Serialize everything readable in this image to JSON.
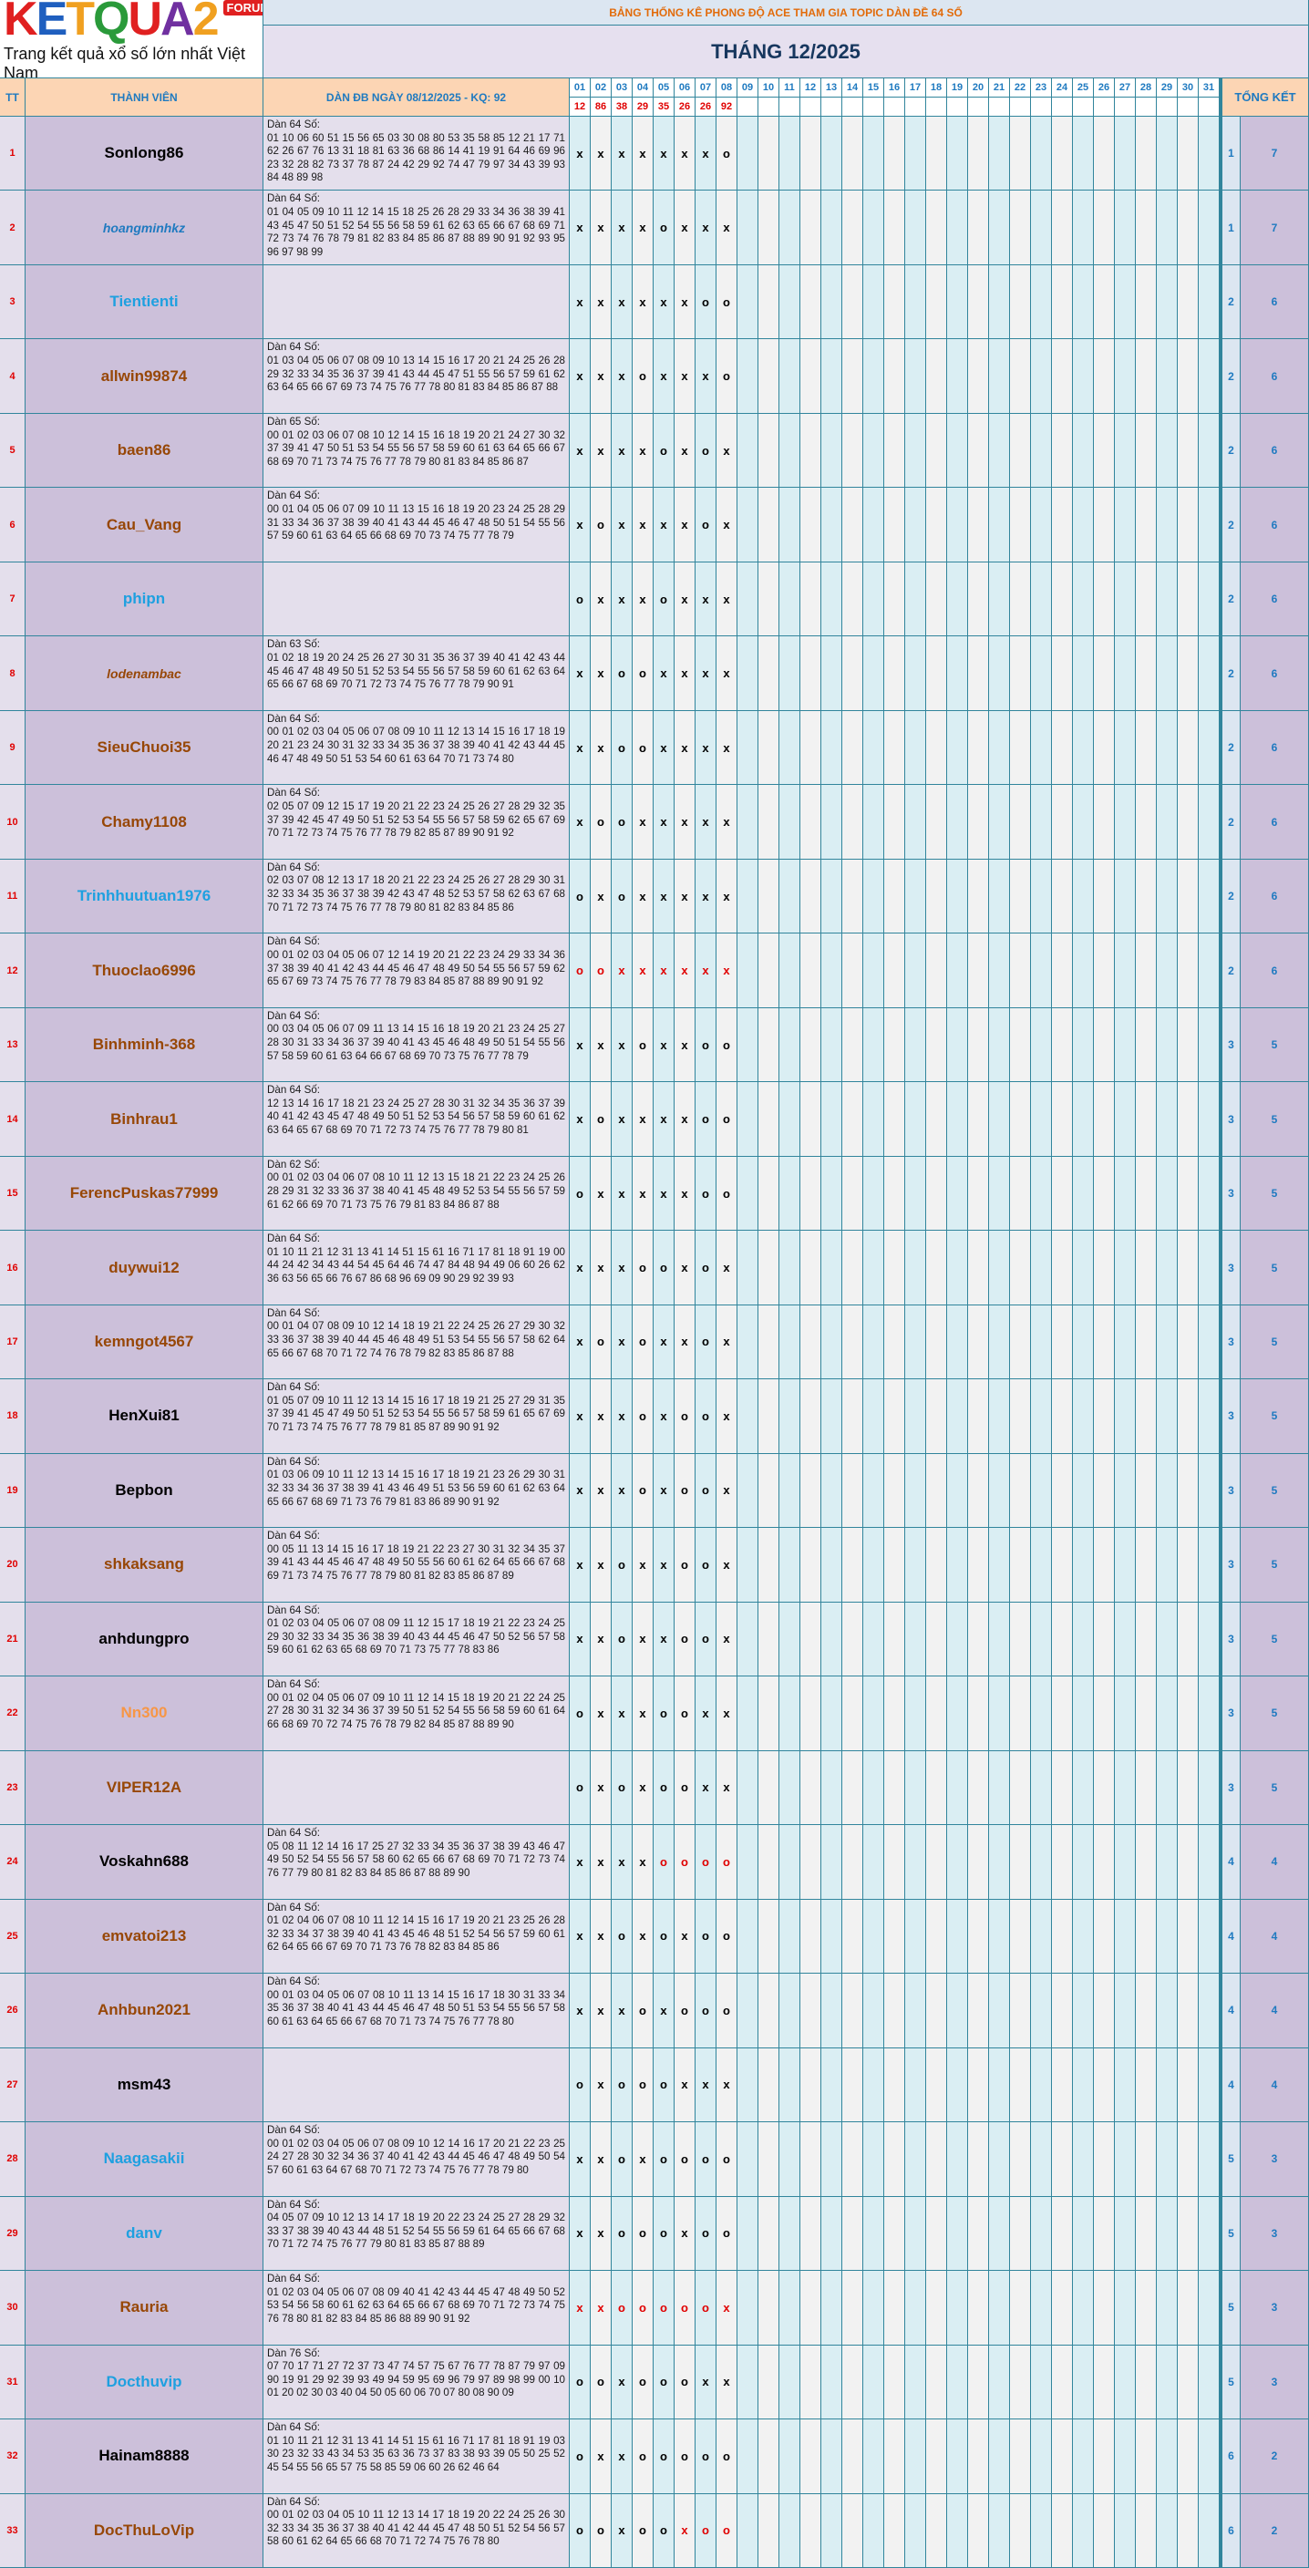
{
  "logo": {
    "text": "KETQUA2",
    "badge": "FORUM",
    "tagline": "Trang kết quả xổ số lớn nhất Việt Nam"
  },
  "header": {
    "title": "BẢNG THỐNG KÊ PHONG ĐỘ ACE THAM GIA TOPIC DÀN ĐỀ 64 SỐ",
    "month": "THÁNG 12/2025",
    "col_tt": "TT",
    "col_name": "THÀNH VIÊN",
    "col_dan": "DÀN ĐB NGÀY 08/12/2025 - KQ: 92",
    "col_total": "TỔNG KẾT"
  },
  "days": [
    "01",
    "02",
    "03",
    "04",
    "05",
    "06",
    "07",
    "08",
    "09",
    "10",
    "11",
    "12",
    "13",
    "14",
    "15",
    "16",
    "17",
    "18",
    "19",
    "20",
    "21",
    "22",
    "23",
    "24",
    "25",
    "26",
    "27",
    "28",
    "29",
    "30",
    "31"
  ],
  "results": [
    "12",
    "86",
    "38",
    "29",
    "35",
    "26",
    "26",
    "92"
  ],
  "rows": [
    {
      "tt": 1,
      "name": "Sonlong86",
      "name_color": "#000000",
      "dan_title": "Dàn 64 Số:",
      "dan": "01 10 06 60 51 15 56 65 03 30 08 80 53 35 58 85 12 21 17 71 62 26 67 76 13 31 18 81 63 36 68 86 14 41 19 91 64 46 69 96 23 32 28 82 73 37 78 87 24 42 29 92 74 47 79 97 34 43 39 93 84 48 89 98",
      "marks": [
        "x",
        "x",
        "x",
        "x",
        "x",
        "x",
        "x",
        "o"
      ],
      "o": 1,
      "x": 7
    },
    {
      "tt": 2,
      "name": "hoangminhkz",
      "name_color": "#1f7ac0",
      "name_style": "italic",
      "dan_title": "Dàn 64 Số:",
      "dan": "01 04 05 09 10 11 12 14 15 18 25 26 28 29 33 34 36 38 39 41 43 45 47 50 51 52 54 55 56 58 59 61 62 63 65 66 67 68 69 71 72 73 74 76 78 79 81 82 83 84 85 86 87 88 89 90 91 92 93 95 96 97 98 99",
      "marks": [
        "x",
        "x",
        "x",
        "x",
        "o",
        "x",
        "x",
        "x"
      ],
      "o": 1,
      "x": 7
    },
    {
      "tt": 3,
      "name": "Tientienti",
      "name_color": "#1ea0e0",
      "marks": [
        "x",
        "x",
        "x",
        "x",
        "x",
        "x",
        "o",
        "o"
      ],
      "o": 2,
      "x": 6
    },
    {
      "tt": 4,
      "name": "allwin99874",
      "name_color": "#974706",
      "dan_title": "Dàn 64 Số:",
      "dan": "01 03 04 05 06 07 08 09 10 13 14 15 16 17 20 21 24 25 26 28 29 32 33 34 35 36 37 39 41 43 44 45 47 51 55 56 57 59 61 62 63 64 65 66 67 69 73 74 75 76 77 78 80 81 83 84 85 86 87 88",
      "marks": [
        "x",
        "x",
        "x",
        "o",
        "x",
        "x",
        "x",
        "o"
      ],
      "o": 2,
      "x": 6
    },
    {
      "tt": 5,
      "name": "baen86",
      "name_color": "#974706",
      "dan_title": "Dàn 65 Số:",
      "dan": "00 01 02 03 06 07 08 10 12 14 15 16 18 19 20 21 24 27 30 32 37 39 41 47 50 51 53 54 55 56 57 58 59 60 61 63 64 65 66 67 68 69 70 71 73 74 75 76 77 78 79 80 81 83 84 85 86 87",
      "marks": [
        "x",
        "x",
        "x",
        "x",
        "o",
        "x",
        "o",
        "x"
      ],
      "o": 2,
      "x": 6
    },
    {
      "tt": 6,
      "name": "Cau_Vang",
      "name_color": "#974706",
      "dan_title": "Dàn 64 Số:",
      "dan": "00 01 04 05 06 07 09 10 11 13 15 16 18 19 20 23 24 25 28 29 31 33 34 36 37 38 39 40 41 43 44 45 46 47 48 50 51 54 55 56 57 59 60 61 63 64 65 66 68 69 70 73 74 75 77 78 79",
      "marks": [
        "x",
        "o",
        "x",
        "x",
        "x",
        "x",
        "o",
        "x"
      ],
      "o": 2,
      "x": 6
    },
    {
      "tt": 7,
      "name": "phipn",
      "name_color": "#1ea0e0",
      "marks": [
        "o",
        "x",
        "x",
        "x",
        "o",
        "x",
        "x",
        "x"
      ],
      "o": 2,
      "x": 6
    },
    {
      "tt": 8,
      "name": "lodenambac",
      "name_color": "#974706",
      "name_style": "italic",
      "dan_title": "Dàn 63 Số:",
      "dan": "01 02 18 19 20 24 25 26 27 30 31 35 36 37 39 40 41 42 43 44 45 46 47 48 49 50 51 52 53 54 55 56 57 58 59 60 61 62 63 64 65 66 67 68 69 70 71 72 73 74 75 76 77 78 79 90 91",
      "marks": [
        "x",
        "x",
        "o",
        "o",
        "x",
        "x",
        "x",
        "x"
      ],
      "o": 2,
      "x": 6
    },
    {
      "tt": 9,
      "name": "SieuChuoi35",
      "name_color": "#974706",
      "dan_title": "Dàn 64 Số:",
      "dan": "00 01 02 03 04 05 06 07 08 09 10 11 12 13 14 15 16 17 18 19 20 21 23 24 30 31 32 33 34 35 36 37 38 39 40 41 42 43 44 45 46 47 48 49 50 51 53 54 60 61 63 64 70 71 73 74 80",
      "marks": [
        "x",
        "x",
        "o",
        "o",
        "x",
        "x",
        "x",
        "x"
      ],
      "o": 2,
      "x": 6
    },
    {
      "tt": 10,
      "name": "Chamy1108",
      "name_color": "#974706",
      "dan_title": "Dàn 64 Số:",
      "dan": "02 05 07 09 12 15 17 19 20 21 22 23 24 25 26 27 28 29 32 35 37 39 42 45 47 49 50 51 52 53 54 55 56 57 58 59 62 65 67 69 70 71 72 73 74 75 76 77 78 79 82 85 87 89 90 91 92",
      "marks": [
        "x",
        "o",
        "o",
        "x",
        "x",
        "x",
        "x",
        "x"
      ],
      "o": 2,
      "x": 6
    },
    {
      "tt": 11,
      "name": "Trinhhuutuan1976",
      "name_color": "#1ea0e0",
      "dan_title": "Dàn 64 Số:",
      "dan": "02 03 07 08 12 13 17 18 20 21 22 23 24 25 26 27 28 29 30 31 32 33 34 35 36 37 38 39 42 43 47 48 52 53 57 58 62 63 67 68 70 71 72 73 74 75 76 77 78 79 80 81 82 83 84 85 86",
      "marks": [
        "o",
        "x",
        "o",
        "x",
        "x",
        "x",
        "x",
        "x"
      ],
      "o": 2,
      "x": 6
    },
    {
      "tt": 12,
      "name": "Thuoclao6996",
      "name_color": "#974706",
      "dan_title": "Dàn 64 Số:",
      "dan": "00 01 02 03 04 05 06 07 12 14 19 20 21 22 23 24 29 33 34 36 37 38 39 40 41 42 43 44 45 46 47 48 49 50 54 55 56 57 59 62 65 67 69 73 74 75 76 77 78 79 83 84 85 87 88 89 90 91 92",
      "marks": [
        "o",
        "o",
        "x",
        "x",
        "x",
        "x",
        "x",
        "x"
      ],
      "mark_colors": [
        "#e00000",
        "#e00000",
        "#e00000",
        "#e00000",
        "#e00000",
        "#e00000",
        "#e00000",
        "#e00000"
      ],
      "o": 2,
      "x": 6
    },
    {
      "tt": 13,
      "name": "Binhminh-368",
      "name_color": "#974706",
      "dan_title": "Dàn 64 Số:",
      "dan": "00 03 04 05 06 07 09 11 13 14 15 16 18 19 20 21 23 24 25 27 28 30 31 33 34 36 37 39 40 41 43 45 46 48 49 50 51 54 55 56 57 58 59 60 61 63 64 66 67 68 69 70 73 75 76 77 78 79",
      "marks": [
        "x",
        "x",
        "x",
        "o",
        "x",
        "x",
        "o",
        "o"
      ],
      "o": 3,
      "x": 5
    },
    {
      "tt": 14,
      "name": "Binhrau1",
      "name_color": "#974706",
      "dan_title": "Dàn 64 Số:",
      "dan": "12 13 14 16 17 18 21 23 24 25 27 28 30 31 32 34 35 36 37 39 40 41 42 43 45 47 48 49 50 51 52 53 54 56 57 58 59 60 61 62 63 64 65 67 68 69 70 71 72 73 74 75 76 77 78 79 80 81",
      "marks": [
        "x",
        "o",
        "x",
        "x",
        "x",
        "x",
        "o",
        "o"
      ],
      "o": 3,
      "x": 5
    },
    {
      "tt": 15,
      "name": "FerencPuskas77999",
      "name_color": "#974706",
      "dan_title": "Dàn 62 Số:",
      "dan": "00 01 02 03 04 06 07 08 10 11 12 13 15 18 21 22 23 24 25 26 28 29 31 32 33 36 37 38 40 41 45 48 49 52 53 54 55 56 57 59 61 62 66 69 70 71 73 75 76 79 81 83 84 86 87 88",
      "marks": [
        "o",
        "x",
        "x",
        "x",
        "x",
        "x",
        "o",
        "o"
      ],
      "o": 3,
      "x": 5
    },
    {
      "tt": 16,
      "name": "duywui12",
      "name_color": "#974706",
      "dan_title": "Dàn 64 Số:",
      "dan": "01 10 11 21 12 31 13 41 14 51 15 61 16 71 17 81 18 91 19 00 44 24 42 34 43 44 54 45 64 46 74 47 84 48 94 49 06 60 26 62 36 63 56 65 66 76 67 86 68 96 69 09 90 29 92 39 93",
      "marks": [
        "x",
        "x",
        "x",
        "o",
        "o",
        "x",
        "o",
        "x"
      ],
      "o": 3,
      "x": 5
    },
    {
      "tt": 17,
      "name": "kemngot4567",
      "name_color": "#974706",
      "dan_title": "Dàn 64 Số:",
      "dan": "00 01 04 07 08 09 10 12 14 18 19 21 22 24 25 26 27 29 30 32 33 36 37 38 39 40 44 45 46 48 49 51 53 54 55 56 57 58 62 64 65 66 67 68 70 71 72 74 76 78 79 82 83 85 86 87 88",
      "marks": [
        "x",
        "o",
        "x",
        "o",
        "x",
        "x",
        "o",
        "x"
      ],
      "o": 3,
      "x": 5
    },
    {
      "tt": 18,
      "name": "HenXui81",
      "name_color": "#000000",
      "dan_title": "Dàn 64 Số:",
      "dan": "01 05 07 09 10 11 12 13 14 15 16 17 18 19 21 25 27 29 31 35 37 39 41 45 47 49 50 51 52 53 54 55 56 57 58 59 61 65 67 69 70 71 73 74 75 76 77 78 79 81 85 87 89 90 91 92",
      "marks": [
        "x",
        "x",
        "x",
        "o",
        "x",
        "o",
        "o",
        "x"
      ],
      "o": 3,
      "x": 5
    },
    {
      "tt": 19,
      "name": "Bepbon",
      "name_color": "#000000",
      "dan_title": "Dàn 64 Số:",
      "dan": "01 03 06 09 10 11 12 13 14 15 16 17 18 19 21 23 26 29 30 31 32 33 34 36 37 38 39 41 43 46 49 51 53 56 59 60 61 62 63 64 65 66 67 68 69 71 73 76 79 81 83 86 89 90 91 92",
      "marks": [
        "x",
        "x",
        "x",
        "o",
        "x",
        "o",
        "o",
        "x"
      ],
      "o": 3,
      "x": 5
    },
    {
      "tt": 20,
      "name": "shkaksang",
      "name_color": "#974706",
      "dan_title": "Dàn 64 Số:",
      "dan": "00 05 11 13 14 15 16 17 18 19 21 22 23 27 30 31 32 34 35 37 39 41 43 44 45 46 47 48 49 50 55 56 60 61 62 64 65 66 67 68 69 71 73 74 75 76 77 78 79 80 81 82 83 85 86 87 89",
      "marks": [
        "x",
        "x",
        "o",
        "x",
        "x",
        "o",
        "o",
        "x"
      ],
      "o": 3,
      "x": 5
    },
    {
      "tt": 21,
      "name": "anhdungpro",
      "name_color": "#000000",
      "dan_title": "Dàn 64 Số:",
      "dan": "01 02 03 04 05 06 07 08 09 11 12 15 17 18 19 21 22 23 24 25 29 30 32 33 34 35 36 38 39 40 43 44 45 46 47 50 52 56 57 58 59 60 61 62 63 65 68 69 70 71 73 75 77 78 83 86",
      "marks": [
        "x",
        "x",
        "o",
        "x",
        "x",
        "o",
        "o",
        "x"
      ],
      "o": 3,
      "x": 5
    },
    {
      "tt": 22,
      "name": "Nn300",
      "name_color": "#f79646",
      "dan_title": "Dàn 64 Số:",
      "dan": "00 01 02 04 05 06 07 09 10 11 12 14 15 18 19 20 21 22 24 25 27 28 30 31 32 34 36 37 39 50 51 52 54 55 56 58 59 60 61 64 66 68 69 70 72 74 75 76 78 79 82 84 85 87 88 89 90",
      "marks": [
        "o",
        "x",
        "x",
        "x",
        "o",
        "o",
        "x",
        "x"
      ],
      "o": 3,
      "x": 5
    },
    {
      "tt": 23,
      "name": "VIPER12A",
      "name_color": "#974706",
      "marks": [
        "o",
        "x",
        "o",
        "x",
        "o",
        "o",
        "x",
        "x"
      ],
      "o": 3,
      "x": 5
    },
    {
      "tt": 24,
      "name": "Voskahn688",
      "name_color": "#000000",
      "dan_title": "Dàn 64 Số:",
      "dan": "05 08 11 12 14 16 17 25 27 32 33 34 35 36 37 38 39 43 46 47 49 50 52 54 55 56 57 58 60 62 65 66 67 68 69 70 71 72 73 74 76 77 79 80 81 82 83 84 85 86 87 88 89 90",
      "marks": [
        "x",
        "x",
        "x",
        "x",
        "o",
        "o",
        "o",
        "o"
      ],
      "mark_colors": [
        "#000000",
        "#000000",
        "#000000",
        "#000000",
        "#e00000",
        "#e00000",
        "#e00000",
        "#e00000"
      ],
      "o": 4,
      "x": 4
    },
    {
      "tt": 25,
      "name": "emvatoi213",
      "name_color": "#974706",
      "dan_title": "Dàn 64 Số:",
      "dan": "01 02 04 06 07 08 10 11 12 14 15 16 17 19 20 21 23 25 26 28 32 33 34 37 38 39 40 41 43 45 46 48 51 52 54 56 57 59 60 61 62 64 65 66 67 69 70 71 73 76 78 82 83 84 85 86",
      "marks": [
        "x",
        "x",
        "o",
        "x",
        "o",
        "x",
        "o",
        "o"
      ],
      "o": 4,
      "x": 4
    },
    {
      "tt": 26,
      "name": "Anhbun2021",
      "name_color": "#974706",
      "dan_title": "Dàn 64 Số:",
      "dan": "00 01 03 04 05 06 07 08 10 11 13 14 15 16 17 18 30 31 33 34 35 36 37 38 40 41 43 44 45 46 47 48 50 51 53 54 55 56 57 58 60 61 63 64 65 66 67 68 70 71 73 74 75 76 77 78 80",
      "marks": [
        "x",
        "x",
        "x",
        "o",
        "x",
        "o",
        "o",
        "o"
      ],
      "o": 4,
      "x": 4
    },
    {
      "tt": 27,
      "name": "msm43",
      "name_color": "#000000",
      "marks": [
        "o",
        "x",
        "o",
        "o",
        "o",
        "x",
        "x",
        "x"
      ],
      "o": 4,
      "x": 4
    },
    {
      "tt": 28,
      "name": "Naagasakii",
      "name_color": "#1ea0e0",
      "dan_title": "Dàn 64 Số:",
      "dan": "00 01 02 03 04 05 06 07 08 09 10 12 14 16 17 20 21 22 23 25 24 27 28 30 32 34 36 37 40 41 42 43 44 45 46 47 48 49 50 54 57 60 61 63 64 67 68 70 71 72 73 74 75 76 77 78 79 80",
      "marks": [
        "x",
        "x",
        "o",
        "x",
        "o",
        "o",
        "o",
        "o"
      ],
      "o": 5,
      "x": 3
    },
    {
      "tt": 29,
      "name": "danv",
      "name_color": "#1ea0e0",
      "dan_title": "Dàn 64 Số:",
      "dan": "04 05 07 09 10 12 13 14 17 18 19 20 22 23 24 25 27 28 29 32 33 37 38 39 40 43 44 48 51 52 54 55 56 59 61 64 65 66 67 68 70 71 72 74 75 76 77 79 80 81 83 85 87 88 89",
      "marks": [
        "x",
        "x",
        "o",
        "o",
        "o",
        "x",
        "o",
        "o"
      ],
      "o": 5,
      "x": 3
    },
    {
      "tt": 30,
      "name": "Rauria",
      "name_color": "#974706",
      "dan_title": "Dàn 64 Số:",
      "dan": "01 02 03 04 05 06 07 08 09 40 41 42 43 44 45 47 48 49 50 52 53 54 56 58 60 61 62 63 64 65 66 67 68 69 70 71 72 73 74 75 76 78 80 81 82 83 84 85 86 88 89 90 91 92",
      "marks": [
        "x",
        "x",
        "o",
        "o",
        "o",
        "o",
        "o",
        "x"
      ],
      "mark_colors": [
        "#e00000",
        "#e00000",
        "#e00000",
        "#e00000",
        "#e00000",
        "#e00000",
        "#e00000",
        "#e00000"
      ],
      "o": 5,
      "x": 3
    },
    {
      "tt": 31,
      "name": "Docthuvip",
      "name_color": "#1ea0e0",
      "dan_title": "Dàn 76 Số:",
      "dan": "07 70 17 71 27 72 37 73 47 74 57 75 67 76 77 78 87 79 97 09 90 19 91 29 92 39 93 49 94 59 95 69 96 79 97 89 98 99 00 10 01 20 02 30 03 40 04 50 05 60 06 70 07 80 08 90 09",
      "marks": [
        "o",
        "o",
        "x",
        "o",
        "o",
        "o",
        "x",
        "x"
      ],
      "o": 5,
      "x": 3
    },
    {
      "tt": 32,
      "name": "Hainam8888",
      "name_color": "#000000",
      "dan_title": "Dàn 64 Số:",
      "dan": "01 10 11 21 12 31 13 41 14 51 15 61 16 71 17 81 18 91 19 03 30 23 32 33 43 34 53 35 63 36 73 37 83 38 93 39 05 50 25 52 45 54 55 56 65 57 75 58 85 59 06 60 26 62 46 64",
      "marks": [
        "o",
        "x",
        "x",
        "o",
        "o",
        "o",
        "o",
        "o"
      ],
      "o": 6,
      "x": 2
    },
    {
      "tt": 33,
      "name": "DocThuLoVip",
      "name_color": "#974706",
      "dan_title": "Dàn 64 Số:",
      "dan": "00 01 02 03 04 05 10 11 12 13 14 17 18 19 20 22 24 25 26 30 32 33 34 35 36 37 38 40 41 42 44 45 47 48 50 51 52 54 56 57 58 60 61 62 64 65 66 68 70 71 72 74 75 76 78 80",
      "marks": [
        "o",
        "o",
        "x",
        "o",
        "o",
        "x",
        "o",
        "o"
      ],
      "mark_colors": [
        "#000000",
        "#000000",
        "#000000",
        "#000000",
        "#000000",
        "#e00000",
        "#e00000",
        "#e00000"
      ],
      "o": 6,
      "x": 2
    }
  ]
}
